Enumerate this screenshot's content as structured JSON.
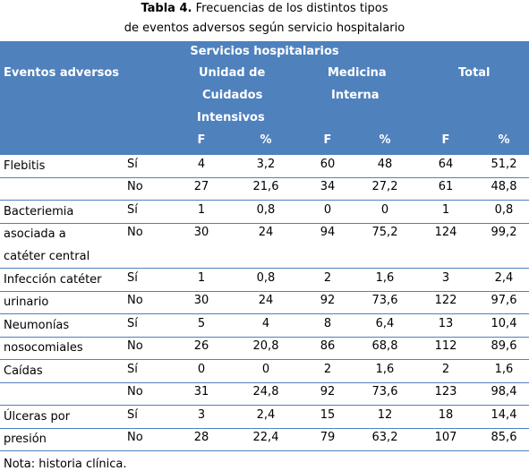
{
  "caption": {
    "label": "Tabla 4.",
    "text_line1": "Frecuencias de los distintos tipos",
    "text_line2": "de eventos adversos según servicio hospitalario"
  },
  "header": {
    "group": "Servicios hospitalarios",
    "row_label": "Eventos adversos",
    "uci_line1": "Unidad de",
    "uci_line2": "Cuidados",
    "uci_line3": "Intensivos",
    "mi_line1": "Medicina",
    "mi_line2": "Interna",
    "total": "Total",
    "sub": [
      "F",
      "%",
      "F",
      "%",
      "F",
      "%"
    ]
  },
  "rows": [
    {
      "event": [
        "Flebitis"
      ],
      "lines": [
        {
          "sino": "Sí",
          "v": [
            "4",
            "3,2",
            "60",
            "48",
            "64",
            "51,2"
          ]
        },
        {
          "sino": "No",
          "v": [
            "27",
            "21,6",
            "34",
            "27,2",
            "61",
            "48,8"
          ]
        }
      ]
    },
    {
      "event": [
        "Bacteriemia",
        "asociada a",
        "catéter central"
      ],
      "lines": [
        {
          "sino": "Sí",
          "v": [
            "1",
            "0,8",
            "0",
            "0",
            "1",
            "0,8"
          ]
        },
        {
          "sino": "No",
          "v": [
            "30",
            "24",
            "94",
            "75,2",
            "124",
            "99,2"
          ]
        }
      ]
    },
    {
      "event": [
        "Infección catéter",
        "urinario"
      ],
      "lines": [
        {
          "sino": "Sí",
          "v": [
            "1",
            "0,8",
            "2",
            "1,6",
            "3",
            "2,4"
          ]
        },
        {
          "sino": "No",
          "v": [
            "30",
            "24",
            "92",
            "73,6",
            "122",
            "97,6"
          ]
        }
      ]
    },
    {
      "event": [
        "Neumonías",
        "nosocomiales"
      ],
      "lines": [
        {
          "sino": "Sí",
          "v": [
            "5",
            "4",
            "8",
            "6,4",
            "13",
            "10,4"
          ]
        },
        {
          "sino": "No",
          "v": [
            "26",
            "20,8",
            "86",
            "68,8",
            "112",
            "89,6"
          ]
        }
      ]
    },
    {
      "event": [
        "Caídas"
      ],
      "lines": [
        {
          "sino": "Sí",
          "v": [
            "0",
            "0",
            "2",
            "1,6",
            "2",
            "1,6"
          ]
        },
        {
          "sino": "No",
          "v": [
            "31",
            "24,8",
            "92",
            "73,6",
            "123",
            "98,4"
          ]
        }
      ]
    },
    {
      "event": [
        "Úlceras por",
        "presión"
      ],
      "lines": [
        {
          "sino": "Sí",
          "v": [
            "3",
            "2,4",
            "15",
            "12",
            "18",
            "14,4"
          ]
        },
        {
          "sino": "No",
          "v": [
            "28",
            "22,4",
            "79",
            "63,2",
            "107",
            "85,6"
          ]
        }
      ]
    }
  ],
  "note": "Nota: historia clínica."
}
